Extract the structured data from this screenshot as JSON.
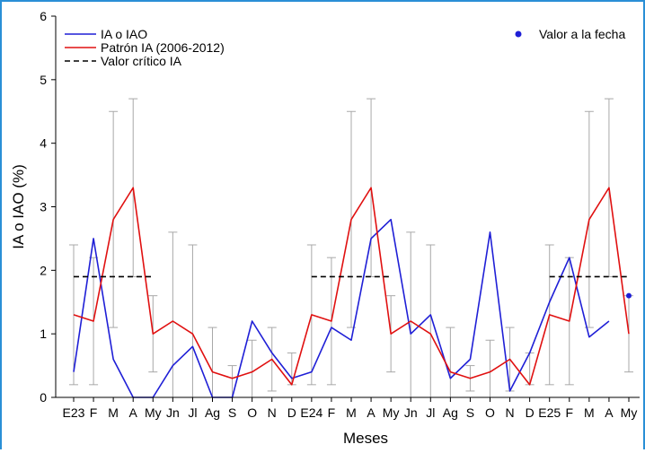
{
  "chart_data": {
    "type": "line",
    "xlabel": "Meses",
    "ylabel": "IA o IAO (%)",
    "ylim": [
      0,
      6
    ],
    "yticks": [
      "0",
      "1",
      "2",
      "3",
      "4",
      "5",
      "6"
    ],
    "categories": [
      "E23",
      "F",
      "M",
      "A",
      "My",
      "Jn",
      "Jl",
      "Ag",
      "S",
      "O",
      "N",
      "D",
      "E24",
      "F",
      "M",
      "A",
      "My",
      "Jn",
      "Jl",
      "Ag",
      "S",
      "O",
      "N",
      "D",
      "E25",
      "F",
      "M",
      "A",
      "My"
    ],
    "series": [
      {
        "name": "IA o IAO",
        "color": "#1f1fd6",
        "values": [
          0.4,
          2.5,
          0.6,
          0.0,
          0.0,
          0.5,
          0.8,
          0.0,
          0.0,
          1.2,
          0.7,
          0.3,
          0.4,
          1.1,
          0.9,
          2.5,
          2.8,
          1.0,
          1.3,
          0.3,
          0.6,
          2.6,
          0.1,
          0.7,
          1.5,
          2.2,
          0.95,
          1.2,
          null
        ]
      },
      {
        "name": "Patrón IA (2006-2012)",
        "color": "#e01010",
        "values": [
          1.3,
          1.2,
          2.8,
          3.3,
          1.0,
          1.2,
          1.0,
          0.4,
          0.3,
          0.4,
          0.6,
          0.2,
          1.3,
          1.2,
          2.8,
          3.3,
          1.0,
          1.2,
          1.0,
          0.4,
          0.3,
          0.4,
          0.6,
          0.2,
          1.3,
          1.2,
          2.8,
          3.3,
          1.0
        ]
      },
      {
        "name": "Valor crítico IA",
        "color": "#000000",
        "dashed": true,
        "segments": [
          [
            0,
            4,
            1.9
          ],
          [
            12,
            16,
            1.9
          ],
          [
            24,
            28,
            1.9
          ]
        ]
      }
    ],
    "error_bars": {
      "color": "#a8a8a8",
      "low": [
        0.2,
        0.2,
        1.1,
        1.9,
        0.4,
        0,
        0,
        0,
        0,
        0,
        0.1,
        0.2,
        0.2,
        0.2,
        1.1,
        1.9,
        0.4,
        0,
        0,
        0,
        0.1,
        0,
        0.1,
        0.2,
        0.2,
        0.2,
        1.1,
        1.9,
        0.4
      ],
      "high": [
        2.4,
        2.2,
        4.5,
        4.7,
        1.6,
        2.6,
        2.4,
        1.1,
        0.5,
        0.9,
        1.1,
        0.7,
        2.4,
        2.2,
        4.5,
        4.7,
        1.6,
        2.6,
        2.4,
        1.1,
        0.5,
        0.9,
        1.1,
        0.7,
        2.4,
        2.2,
        4.5,
        4.7,
        1.6
      ]
    },
    "point": {
      "name": "Valor a la fecha",
      "color": "#1f1fd6",
      "index": 28,
      "value": 1.6
    },
    "legend_position": "top-left",
    "grid": false
  }
}
